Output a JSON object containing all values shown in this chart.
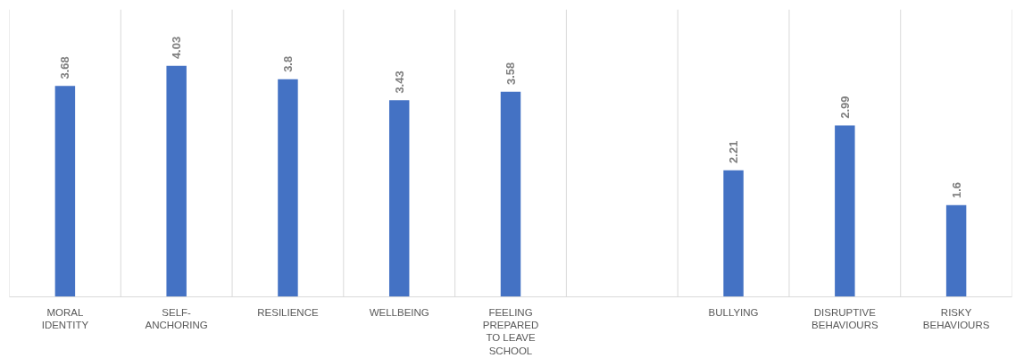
{
  "chart_data": {
    "type": "bar",
    "categories": [
      "MORAL\nIDENTITY",
      "SELF-\nANCHORING",
      "RESILIENCE",
      "WELLBEING",
      "FEELING\nPREPARED\nTO LEAVE\nSCHOOL",
      null,
      "BULLYING",
      "DISRUPTIVE\nBEHAVIOURS",
      "RISKY\nBEHAVIOURS"
    ],
    "values": [
      3.68,
      4.03,
      3.8,
      3.43,
      3.58,
      null,
      2.21,
      2.99,
      1.6
    ],
    "color": "#4472c4",
    "data_labels": true,
    "grid": "x",
    "tick_labels": "x"
  }
}
